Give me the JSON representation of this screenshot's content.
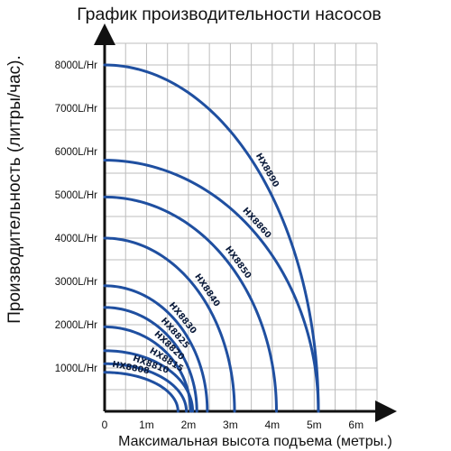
{
  "chart_data": {
    "type": "line",
    "title": "График производительности насосов",
    "xlabel": "Максимальная высота подъема (метры.)",
    "ylabel": "Производительность (литры/час).",
    "xlim": [
      0,
      6.5
    ],
    "ylim": [
      0,
      8500
    ],
    "x_ticks": [
      "0",
      "1m",
      "2m",
      "3m",
      "4m",
      "5m",
      "6m"
    ],
    "y_ticks": [
      "1000L/Hr",
      "2000L/Hr",
      "3000L/Hr",
      "4000L/Hr",
      "5000L/Hr",
      "6000L/Hr",
      "7000L/Hr",
      "8000L/Hr"
    ],
    "grid": true,
    "line_color": "#1f4fa0",
    "series": [
      {
        "name": "HX8808",
        "max_flow": 900,
        "max_head": 1.75
      },
      {
        "name": "HX8810",
        "max_flow": 1100,
        "max_head": 1.95
      },
      {
        "name": "HX8815",
        "max_flow": 1400,
        "max_head": 2.1
      },
      {
        "name": "HX8820",
        "max_flow": 1950,
        "max_head": 2.05
      },
      {
        "name": "HX8825",
        "max_flow": 2400,
        "max_head": 2.2
      },
      {
        "name": "HX8830",
        "max_flow": 2900,
        "max_head": 2.45
      },
      {
        "name": "HX8840",
        "max_flow": 4000,
        "max_head": 3.1
      },
      {
        "name": "HX8850",
        "max_flow": 4950,
        "max_head": 4.1
      },
      {
        "name": "HX8860",
        "max_flow": 5800,
        "max_head": 5.1
      },
      {
        "name": "HX8890",
        "max_flow": 8000,
        "max_head": 5.1
      }
    ]
  }
}
